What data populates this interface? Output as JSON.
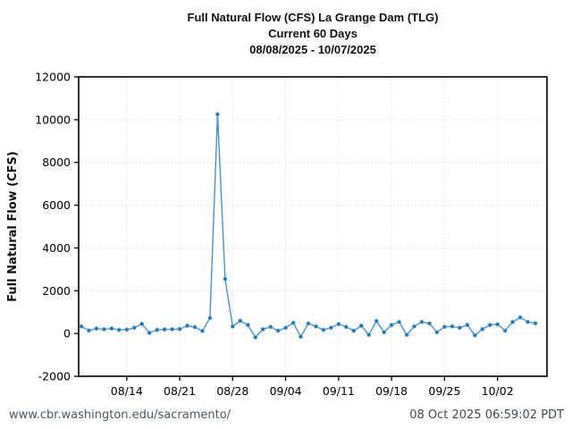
{
  "title": {
    "line1": "Full Natural Flow (CFS) La Grange Dam (TLG)",
    "line2": "Current 60 Days",
    "line3": "08/08/2025 - 10/07/2025"
  },
  "footer": {
    "url": "www.cbr.washington.edu/sacramento/",
    "timestamp": "08 Oct 2025 06:59:02 PDT"
  },
  "colors": {
    "line": "#4a94c8",
    "marker": "#1f77b4",
    "grid": "#c9c9c9",
    "axis": "#000000",
    "tick_text": "#000000"
  },
  "chart_data": {
    "type": "line",
    "title": "Full Natural Flow (CFS) La Grange Dam (TLG) — Current 60 Days — 08/08/2025 - 10/07/2025",
    "xlabel": "",
    "ylabel": "Full Natural Flow (CFS)",
    "ylim": [
      -2000,
      12000
    ],
    "yticks": [
      -2000,
      0,
      2000,
      4000,
      6000,
      8000,
      10000,
      12000
    ],
    "xticks": [
      "08/14",
      "08/21",
      "08/28",
      "09/04",
      "09/11",
      "09/18",
      "09/25",
      "10/02"
    ],
    "grid": "dotted",
    "legend_position": "none",
    "x": [
      "08/08",
      "08/09",
      "08/10",
      "08/11",
      "08/12",
      "08/13",
      "08/14",
      "08/15",
      "08/16",
      "08/17",
      "08/18",
      "08/19",
      "08/20",
      "08/21",
      "08/22",
      "08/23",
      "08/24",
      "08/25",
      "08/26",
      "08/27",
      "08/28",
      "08/29",
      "08/30",
      "08/31",
      "09/01",
      "09/02",
      "09/03",
      "09/04",
      "09/05",
      "09/06",
      "09/07",
      "09/08",
      "09/09",
      "09/10",
      "09/11",
      "09/12",
      "09/13",
      "09/14",
      "09/15",
      "09/16",
      "09/17",
      "09/18",
      "09/19",
      "09/20",
      "09/21",
      "09/22",
      "09/23",
      "09/24",
      "09/25",
      "09/26",
      "09/27",
      "09/28",
      "09/29",
      "09/30",
      "10/01",
      "10/02",
      "10/03",
      "10/04",
      "10/05",
      "10/06",
      "10/07"
    ],
    "values": [
      330,
      140,
      230,
      200,
      230,
      170,
      180,
      270,
      450,
      30,
      170,
      190,
      200,
      210,
      360,
      300,
      120,
      730,
      10250,
      2550,
      330,
      590,
      400,
      -180,
      200,
      310,
      130,
      270,
      500,
      -150,
      470,
      330,
      170,
      270,
      440,
      310,
      130,
      360,
      -60,
      580,
      60,
      400,
      540,
      -60,
      330,
      540,
      470,
      60,
      310,
      330,
      270,
      400,
      -80,
      200,
      400,
      430,
      130,
      540,
      750,
      540,
      480
    ]
  }
}
